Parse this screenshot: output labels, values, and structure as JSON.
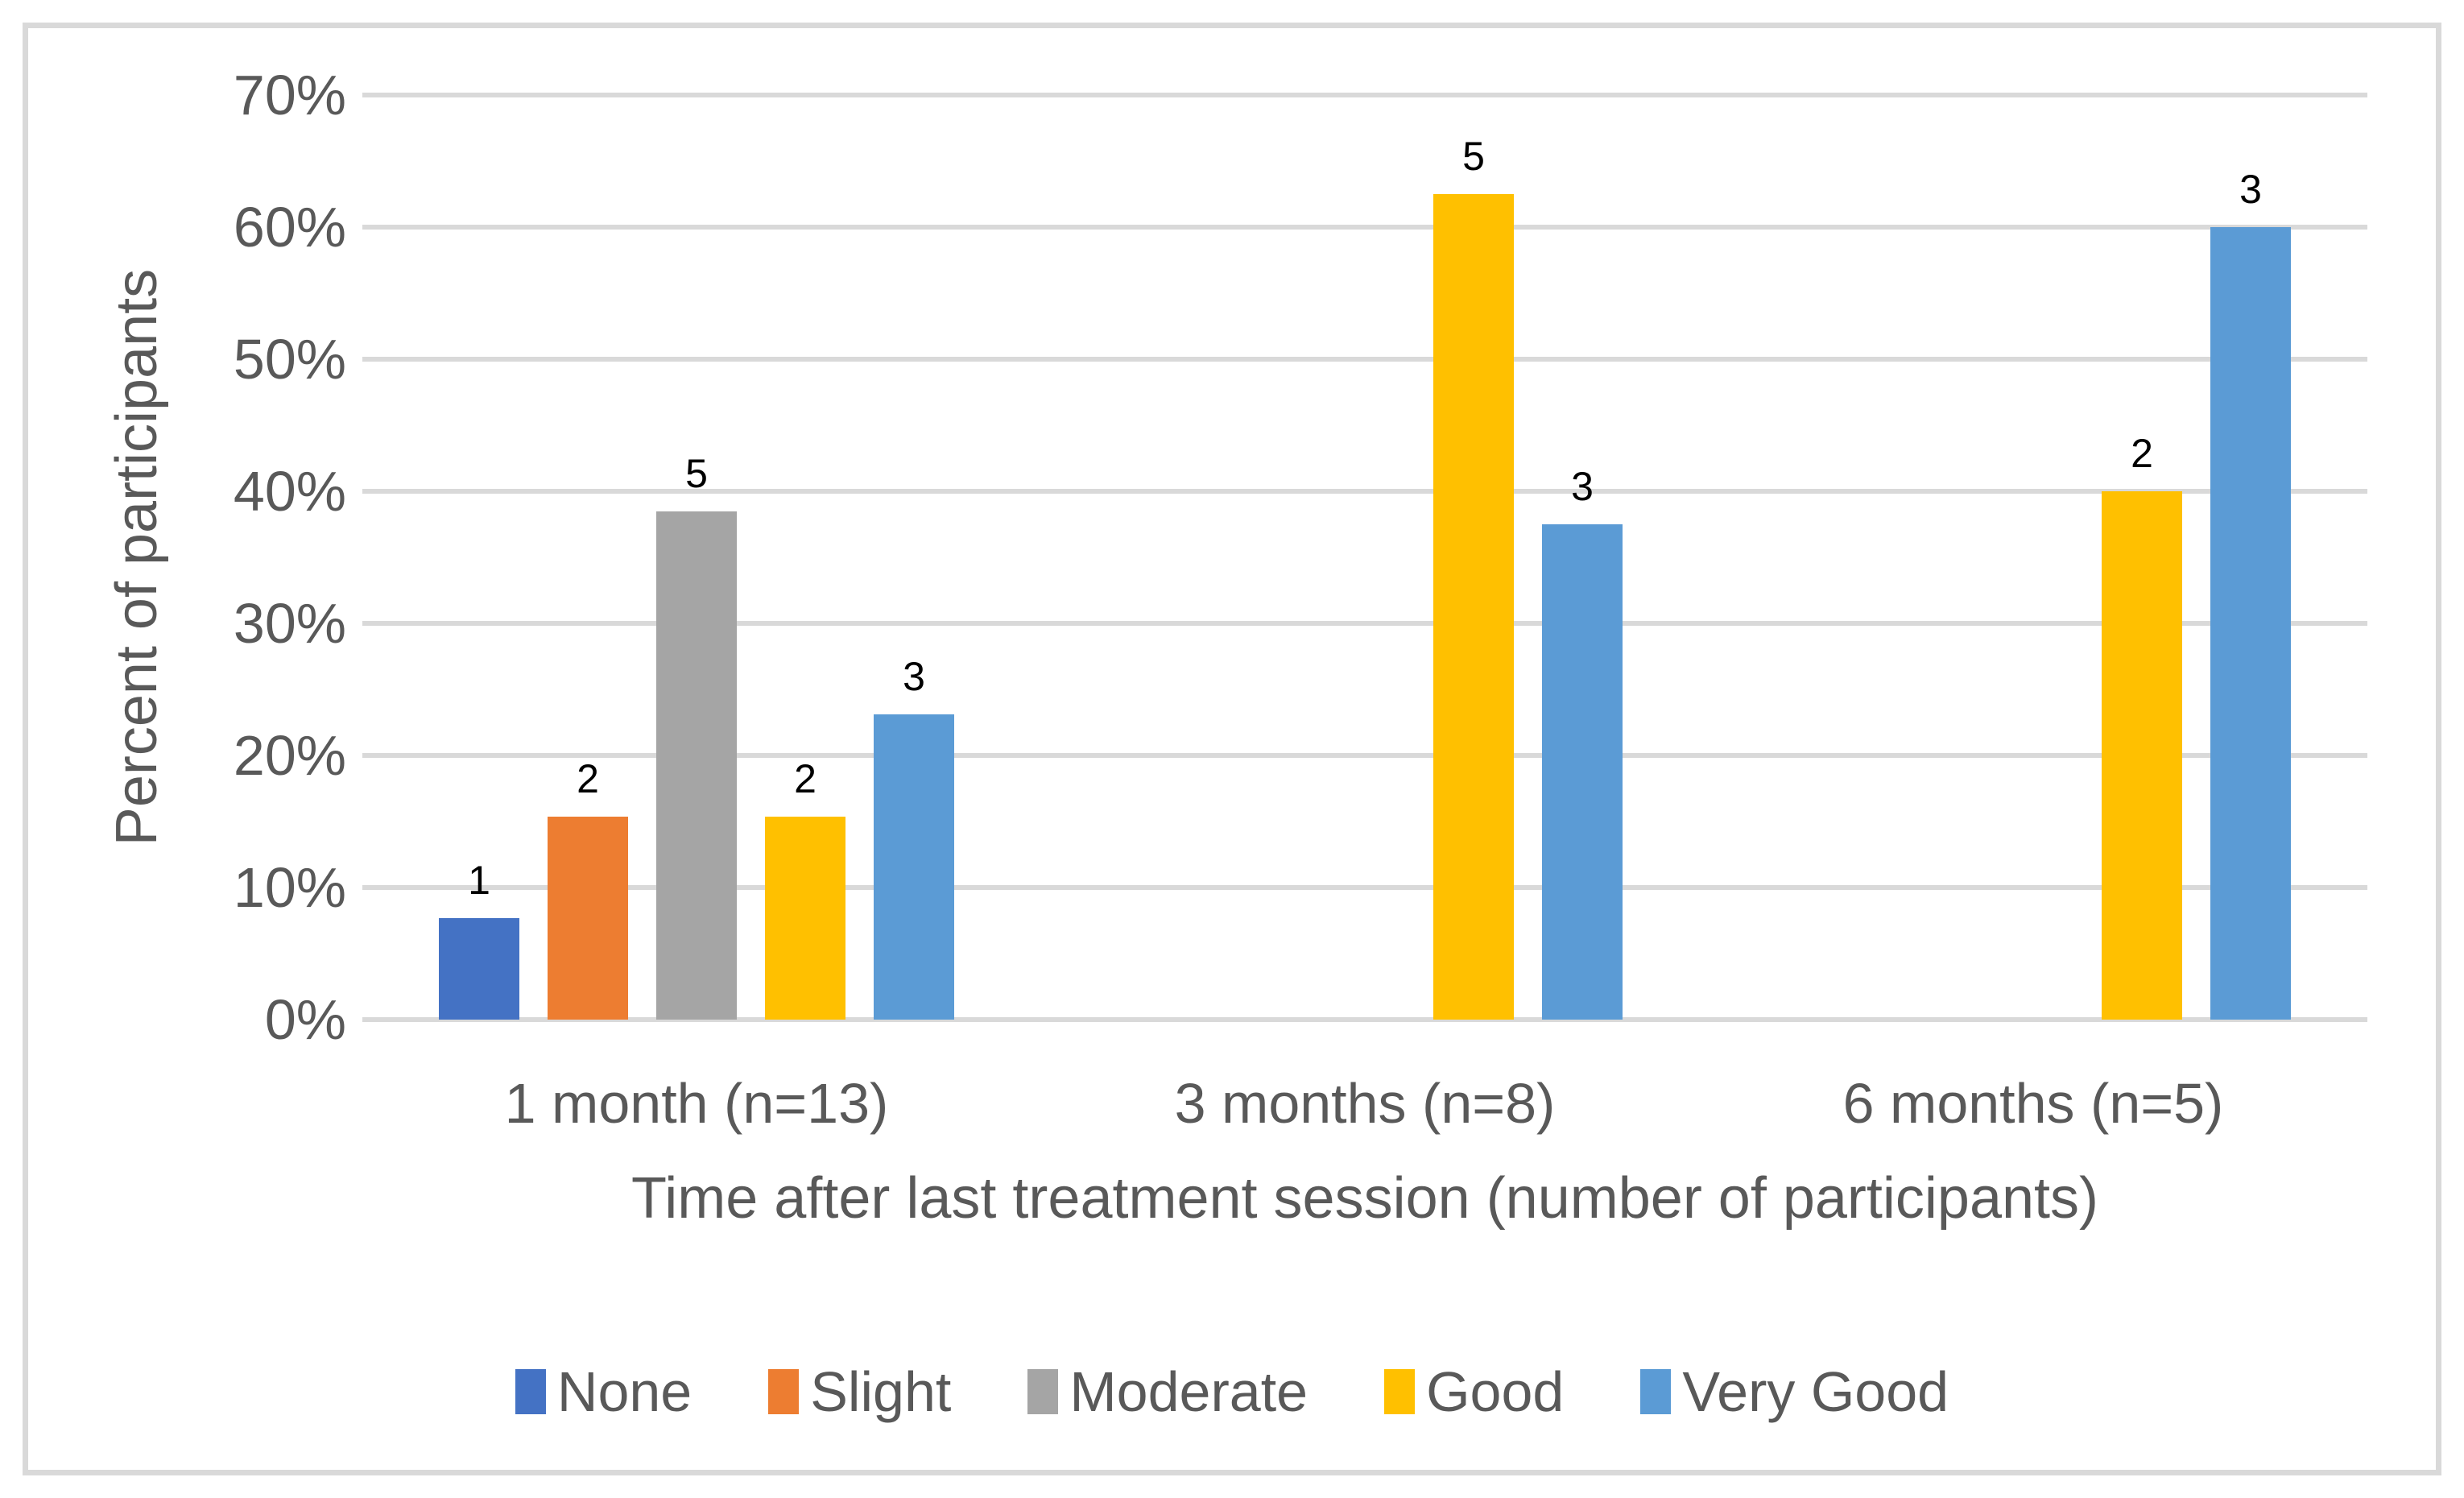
{
  "frame": {
    "border_color": "#D9D9D9",
    "background": "#FFFFFF"
  },
  "chart_data": {
    "type": "bar",
    "title": "",
    "xlabel": "Time after last treatment session (number of participants)",
    "ylabel": "Percent of participants",
    "ylim": [
      0,
      70
    ],
    "ytick_step": 10,
    "ytick_labels": [
      "0%",
      "10%",
      "20%",
      "30%",
      "40%",
      "50%",
      "60%",
      "70%"
    ],
    "grid": "horizontal",
    "gridline_color": "#D9D9D9",
    "axis_text_color": "#595959",
    "data_label_color": "#000000",
    "data_labels": "counts",
    "legend_position": "bottom",
    "categories": [
      "1 month (n=13)",
      "3 months (n=8)",
      "6 months (n=5)"
    ],
    "series": [
      {
        "name": "None",
        "color": "#4472C4",
        "counts": [
          1,
          0,
          0
        ],
        "percents": [
          7.69,
          0,
          0
        ]
      },
      {
        "name": "Slight",
        "color": "#ED7D31",
        "counts": [
          2,
          0,
          0
        ],
        "percents": [
          15.38,
          0,
          0
        ]
      },
      {
        "name": "Moderate",
        "color": "#A5A5A5",
        "counts": [
          5,
          0,
          0
        ],
        "percents": [
          38.46,
          0,
          0
        ]
      },
      {
        "name": "Good",
        "color": "#FFC000",
        "counts": [
          2,
          5,
          2
        ],
        "percents": [
          15.38,
          62.5,
          40
        ]
      },
      {
        "name": "Very Good",
        "color": "#5B9BD5",
        "counts": [
          3,
          3,
          3
        ],
        "percents": [
          23.08,
          37.5,
          60
        ]
      }
    ]
  }
}
